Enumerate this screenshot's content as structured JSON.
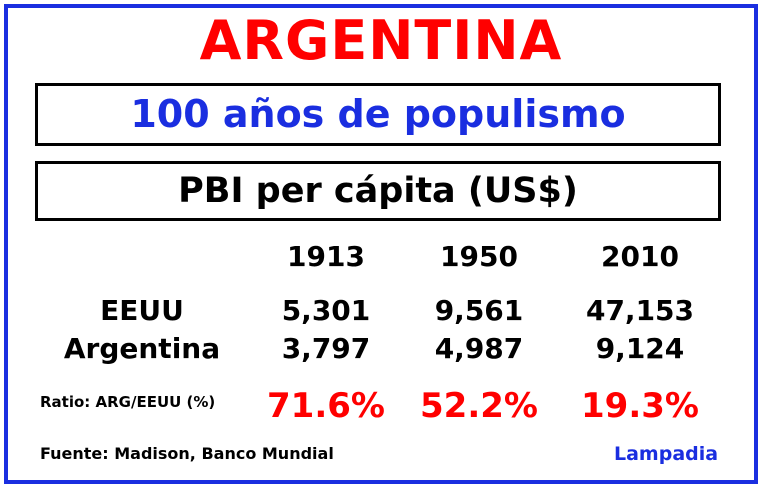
{
  "title": "ARGENTINA",
  "subtitle": "100 años de populismo",
  "heading": "PBI per cápita (US$)",
  "table": {
    "years": [
      "1913",
      "1950",
      "2010"
    ],
    "rows": [
      {
        "label": "EEUU",
        "values": [
          "5,301",
          "9,561",
          "47,153"
        ]
      },
      {
        "label": "Argentina",
        "values": [
          "3,797",
          "4,987",
          "9,124"
        ]
      }
    ],
    "ratio": {
      "label": "Ratio:  ARG/EEUU (%)",
      "values": [
        "71.6%",
        "52.2%",
        "19.3%"
      ]
    }
  },
  "source": "Fuente: Madison, Banco Mundial",
  "brand": "Lampadia",
  "colors": {
    "accent_blue": "#1a2ee0",
    "accent_red": "#ff0000",
    "border": "#1a2ee0"
  }
}
